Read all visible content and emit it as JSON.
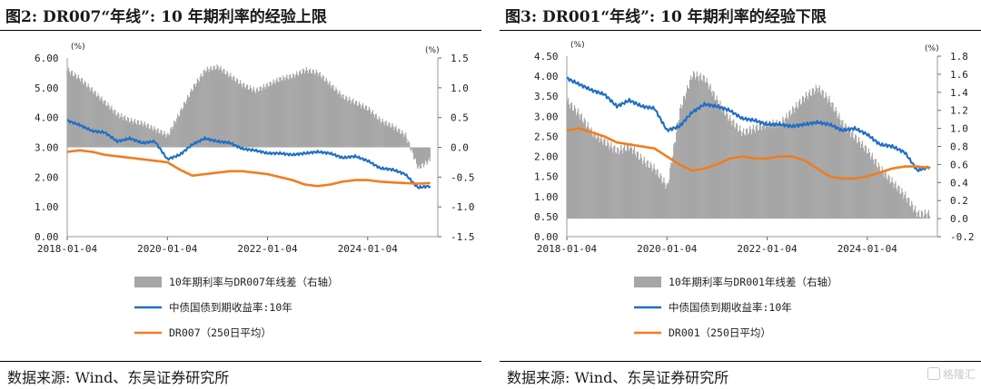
{
  "panels": [
    {
      "title": "图2: DR007“年线”: 10 年期利率的经验上限",
      "source": "数据来源: Wind、东吴证券研究所"
    },
    {
      "title": "图3: DR001“年线”: 10 年期利率的经验下限",
      "source": "数据来源: Wind、东吴证券研究所"
    }
  ],
  "watermark": "格隆汇",
  "chart_data": [
    {
      "type": "bar+line",
      "x_ticks": [
        "2018-01-04",
        "2020-01-04",
        "2022-01-04",
        "2024-01-04"
      ],
      "left_unit": "(%)",
      "right_unit": "(%)",
      "left_ticks": [
        "6.00",
        "5.00",
        "4.00",
        "3.00",
        "2.00",
        "1.00",
        "0.00"
      ],
      "right_ticks": [
        "1.5",
        "1.0",
        "0.5",
        "0.0",
        "-0.5",
        "-1.0",
        "-1.5"
      ],
      "ylim_left": [
        0,
        6
      ],
      "ylim_right": [
        -1.5,
        1.5
      ],
      "series": [
        {
          "name": "10年期利率与DR007年线差（右轴）",
          "kind": "bar",
          "axis": "right",
          "color": "#a6a6a6",
          "x": [
            2018.0,
            2018.25,
            2018.5,
            2018.75,
            2019.0,
            2019.25,
            2019.5,
            2019.75,
            2020.0,
            2020.25,
            2020.5,
            2020.75,
            2021.0,
            2021.25,
            2021.5,
            2021.75,
            2022.0,
            2022.25,
            2022.5,
            2022.75,
            2023.0,
            2023.25,
            2023.5,
            2023.75,
            2024.0,
            2024.25,
            2024.5,
            2024.75,
            2025.0,
            2025.25
          ],
          "values": [
            1.3,
            1.15,
            0.95,
            0.75,
            0.55,
            0.45,
            0.4,
            0.3,
            0.2,
            0.6,
            1.0,
            1.3,
            1.35,
            1.2,
            1.05,
            0.95,
            1.05,
            1.15,
            1.2,
            1.3,
            1.25,
            1.05,
            0.85,
            0.75,
            0.65,
            0.45,
            0.35,
            0.2,
            -0.35,
            -0.2
          ]
        },
        {
          "name": "中债国债到期收益率:10年",
          "kind": "line",
          "axis": "left",
          "color": "#1f6fc5",
          "x": [
            2018.0,
            2018.25,
            2018.5,
            2018.75,
            2019.0,
            2019.25,
            2019.5,
            2019.75,
            2020.0,
            2020.25,
            2020.5,
            2020.75,
            2021.0,
            2021.25,
            2021.5,
            2021.75,
            2022.0,
            2022.25,
            2022.5,
            2022.75,
            2023.0,
            2023.25,
            2023.5,
            2023.75,
            2024.0,
            2024.25,
            2024.5,
            2024.75,
            2025.0,
            2025.25
          ],
          "values": [
            3.9,
            3.75,
            3.55,
            3.5,
            3.2,
            3.3,
            3.15,
            3.2,
            2.6,
            2.75,
            3.1,
            3.3,
            3.2,
            3.15,
            2.95,
            2.9,
            2.8,
            2.8,
            2.75,
            2.8,
            2.85,
            2.8,
            2.65,
            2.7,
            2.55,
            2.3,
            2.25,
            2.1,
            1.65,
            1.7
          ]
        },
        {
          "name": "DR007（250日平均）",
          "kind": "line",
          "axis": "left",
          "color": "#f07d1e",
          "x": [
            2018.0,
            2018.25,
            2018.5,
            2018.75,
            2019.0,
            2019.25,
            2019.5,
            2019.75,
            2020.0,
            2020.25,
            2020.5,
            2020.75,
            2021.0,
            2021.25,
            2021.5,
            2021.75,
            2022.0,
            2022.25,
            2022.5,
            2022.75,
            2023.0,
            2023.25,
            2023.5,
            2023.75,
            2024.0,
            2024.25,
            2024.5,
            2024.75,
            2025.0,
            2025.25
          ],
          "values": [
            2.85,
            2.9,
            2.85,
            2.75,
            2.7,
            2.65,
            2.6,
            2.55,
            2.5,
            2.25,
            2.05,
            2.1,
            2.15,
            2.2,
            2.2,
            2.15,
            2.1,
            2.0,
            1.9,
            1.75,
            1.7,
            1.75,
            1.85,
            1.9,
            1.9,
            1.85,
            1.82,
            1.8,
            1.78,
            1.8
          ]
        }
      ]
    },
    {
      "type": "bar+line",
      "x_ticks": [
        "2018-01-04",
        "2020-01-04",
        "2022-01-04",
        "2024-01-04"
      ],
      "left_unit": "(%)",
      "right_unit": "(%)",
      "left_ticks": [
        "4.50",
        "4.00",
        "3.50",
        "3.00",
        "2.50",
        "2.00",
        "1.50",
        "1.00",
        "0.50",
        "0.00"
      ],
      "right_ticks": [
        "1.8",
        "1.6",
        "1.4",
        "1.2",
        "1.0",
        "0.8",
        "0.6",
        "0.4",
        "0.2",
        "0.0",
        "-0.2"
      ],
      "ylim_left": [
        0,
        4.5
      ],
      "ylim_right": [
        -0.2,
        1.8
      ],
      "series": [
        {
          "name": "10年期利率与DR001年线差（右轴）",
          "kind": "bar",
          "axis": "right",
          "color": "#a6a6a6",
          "x": [
            2018.0,
            2018.25,
            2018.5,
            2018.75,
            2019.0,
            2019.25,
            2019.5,
            2019.75,
            2020.0,
            2020.25,
            2020.5,
            2020.75,
            2021.0,
            2021.25,
            2021.5,
            2021.75,
            2022.0,
            2022.25,
            2022.5,
            2022.75,
            2023.0,
            2023.25,
            2023.5,
            2023.75,
            2024.0,
            2024.25,
            2024.5,
            2024.75,
            2025.0,
            2025.25
          ],
          "values": [
            1.3,
            1.15,
            0.95,
            0.85,
            0.75,
            0.8,
            0.65,
            0.55,
            0.35,
            1.2,
            1.6,
            1.55,
            1.3,
            1.1,
            0.95,
            1.0,
            1.05,
            1.05,
            1.2,
            1.35,
            1.45,
            1.3,
            1.05,
            0.9,
            0.75,
            0.55,
            0.4,
            0.25,
            0.05,
            0.05
          ]
        },
        {
          "name": "中债国债到期收益率:10年",
          "kind": "line",
          "axis": "left",
          "color": "#1f6fc5",
          "x": [
            2018.0,
            2018.25,
            2018.5,
            2018.75,
            2019.0,
            2019.25,
            2019.5,
            2019.75,
            2020.0,
            2020.25,
            2020.5,
            2020.75,
            2021.0,
            2021.25,
            2021.5,
            2021.75,
            2022.0,
            2022.25,
            2022.5,
            2022.75,
            2023.0,
            2023.25,
            2023.5,
            2023.75,
            2024.0,
            2024.25,
            2024.5,
            2024.75,
            2025.0,
            2025.25
          ],
          "values": [
            3.95,
            3.8,
            3.65,
            3.55,
            3.25,
            3.4,
            3.25,
            3.2,
            2.65,
            2.75,
            3.1,
            3.3,
            3.25,
            3.15,
            2.95,
            2.9,
            2.8,
            2.8,
            2.75,
            2.8,
            2.85,
            2.8,
            2.65,
            2.7,
            2.55,
            2.3,
            2.25,
            2.1,
            1.65,
            1.75
          ]
        },
        {
          "name": "DR001（250日平均）",
          "kind": "line",
          "axis": "left",
          "color": "#f07d1e",
          "x": [
            2018.0,
            2018.25,
            2018.5,
            2018.75,
            2019.0,
            2019.25,
            2019.5,
            2019.75,
            2020.0,
            2020.25,
            2020.5,
            2020.75,
            2021.0,
            2021.25,
            2021.5,
            2021.75,
            2022.0,
            2022.25,
            2022.5,
            2022.75,
            2023.0,
            2023.25,
            2023.5,
            2023.75,
            2024.0,
            2024.25,
            2024.5,
            2024.75,
            2025.0,
            2025.25
          ],
          "values": [
            2.65,
            2.7,
            2.6,
            2.5,
            2.35,
            2.3,
            2.25,
            2.2,
            2.0,
            1.8,
            1.65,
            1.7,
            1.8,
            1.95,
            2.0,
            1.95,
            1.95,
            2.0,
            2.0,
            1.9,
            1.7,
            1.5,
            1.45,
            1.45,
            1.5,
            1.6,
            1.7,
            1.75,
            1.75,
            1.72
          ]
        }
      ]
    }
  ]
}
